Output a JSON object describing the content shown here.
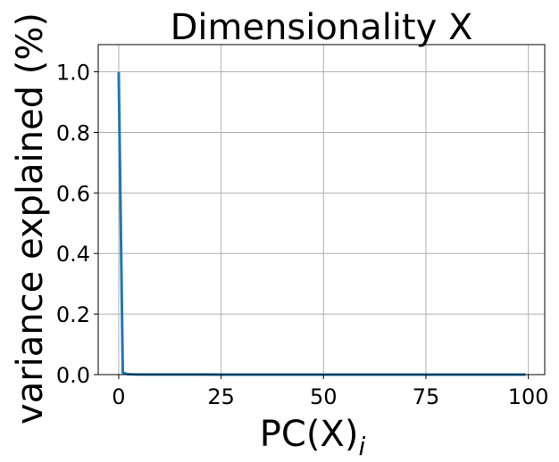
{
  "chart_data": {
    "type": "line",
    "title": "Dimensionality X",
    "xlabel": "PC(X)",
    "xlabel_subscript": "i",
    "ylabel": "variance explained (%)",
    "xlim": [
      -5,
      104
    ],
    "ylim": [
      0,
      1.09
    ],
    "xticks": [
      0,
      25,
      50,
      75,
      100
    ],
    "yticks": [
      0.0,
      0.2,
      0.4,
      0.6,
      0.8,
      1.0
    ],
    "xtick_labels": [
      "0",
      "25",
      "50",
      "75",
      "100"
    ],
    "ytick_labels": [
      "0.0",
      "0.2",
      "0.4",
      "0.6",
      "0.8",
      "1.0"
    ],
    "grid": true,
    "series": [
      {
        "color": "#1f77b4",
        "x": [
          0,
          1,
          2,
          3,
          5,
          10,
          20,
          40,
          60,
          80,
          99
        ],
        "y": [
          0.995,
          0.006,
          0.002,
          0.001,
          0.0005,
          0.0003,
          0.0002,
          0.0001,
          0.0001,
          0.0001,
          0.0001
        ]
      }
    ]
  }
}
